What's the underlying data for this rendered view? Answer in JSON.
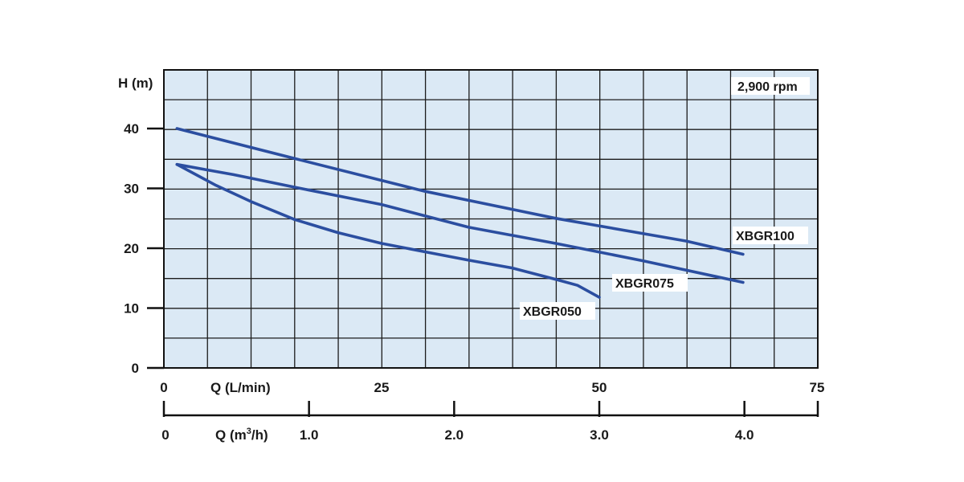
{
  "chart_data": {
    "type": "line",
    "title": "",
    "ylabel": "H (m)",
    "ylim": [
      0,
      50
    ],
    "yticks": [
      0,
      10,
      20,
      30,
      40
    ],
    "xlabel_primary": "Q (L/min)",
    "xlim_primary": [
      0,
      75
    ],
    "xticks_primary": [
      0,
      25,
      50,
      75
    ],
    "xlabel_secondary_prefix": "Q (m",
    "xlabel_secondary_sup": "3",
    "xlabel_secondary_suffix": "/h)",
    "xlim_secondary": [
      0,
      4.5
    ],
    "xticks_secondary": [
      "0",
      "1.0",
      "2.0",
      "3.0",
      "4.0"
    ],
    "grid": true,
    "annotation": "2,900 rpm",
    "series": [
      {
        "name": "XBGR100",
        "x": [
          1.5,
          15,
          30,
          45,
          60,
          66.5
        ],
        "y": [
          40,
          35,
          29.5,
          25,
          21.2,
          19
        ]
      },
      {
        "name": "XBGR075",
        "x": [
          1.5,
          8,
          15,
          25,
          35,
          45,
          55,
          66.5
        ],
        "y": [
          34,
          32.3,
          30.2,
          27.3,
          23.5,
          20.8,
          17.9,
          14.3
        ]
      },
      {
        "name": "XBGR050",
        "x": [
          1.5,
          6,
          10,
          15,
          20,
          25,
          30,
          35,
          40,
          45,
          47.5,
          50
        ],
        "y": [
          34,
          30.5,
          27.8,
          24.8,
          22.6,
          20.8,
          19.4,
          18,
          16.7,
          14.8,
          13.8,
          11.8
        ]
      }
    ],
    "line_color": "#2b4ea0",
    "plot_bg": "#dbe9f5"
  }
}
